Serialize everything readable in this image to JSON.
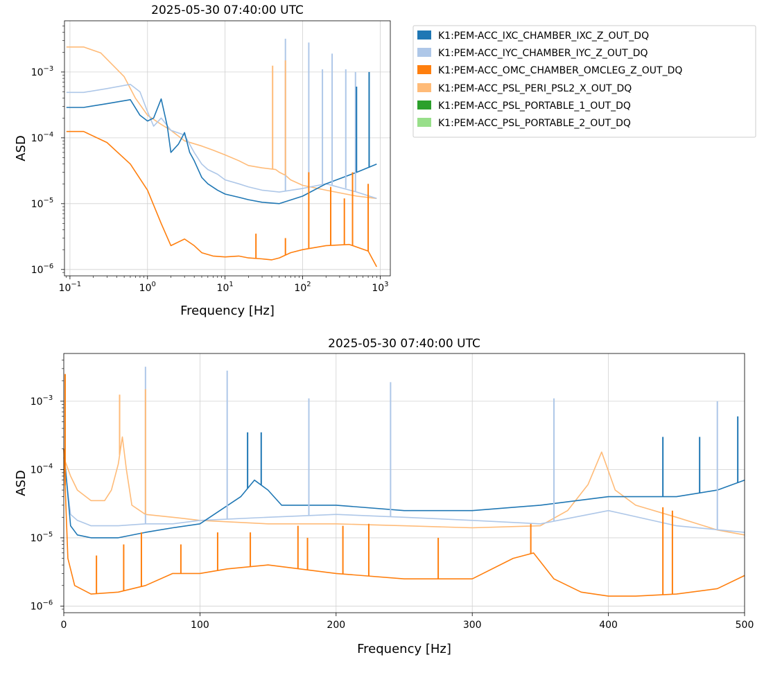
{
  "colors": {
    "IXC": "#1f77b4",
    "IYC": "#aec7e8",
    "OMC": "#ff7f0e",
    "PSL": "#ffbb78",
    "PORT1": "#2ca02c",
    "PORT2": "#98df8a"
  },
  "legend": {
    "placement": "right of top panel",
    "entries": [
      {
        "key": "IXC",
        "label": "K1:PEM-ACC_IXC_CHAMBER_IXC_Z_OUT_DQ"
      },
      {
        "key": "IYC",
        "label": "K1:PEM-ACC_IYC_CHAMBER_IYC_Z_OUT_DQ"
      },
      {
        "key": "OMC",
        "label": "K1:PEM-ACC_OMC_CHAMBER_OMCLEG_Z_OUT_DQ"
      },
      {
        "key": "PSL",
        "label": "K1:PEM-ACC_PSL_PERI_PSL2_X_OUT_DQ"
      },
      {
        "key": "PORT1",
        "label": "K1:PEM-ACC_PSL_PORTABLE_1_OUT_DQ"
      },
      {
        "key": "PORT2",
        "label": "K1:PEM-ACC_PSL_PORTABLE_2_OUT_DQ"
      }
    ]
  },
  "chart_data": [
    {
      "type": "line",
      "title": "2025-05-30 07:40:00 UTC",
      "xlabel": "Frequency [Hz]",
      "ylabel": "ASD",
      "xscale": "log",
      "yscale": "log",
      "xlim": [
        0.085,
        1350
      ],
      "ylim": [
        8e-07,
        0.006
      ],
      "grid": true,
      "xticks": [
        {
          "value": 0.1,
          "base": "10",
          "exp": "−1"
        },
        {
          "value": 1,
          "base": "10",
          "exp": "0"
        },
        {
          "value": 10,
          "base": "10",
          "exp": "1"
        },
        {
          "value": 100,
          "base": "10",
          "exp": "2"
        },
        {
          "value": 1000,
          "base": "10",
          "exp": "3"
        }
      ],
      "yticks": [
        {
          "value": 1e-06,
          "base": "10",
          "exp": "−6"
        },
        {
          "value": 1e-05,
          "base": "10",
          "exp": "−5"
        },
        {
          "value": 0.0001,
          "base": "10",
          "exp": "−4"
        },
        {
          "value": 0.001,
          "base": "10",
          "exp": "−3"
        }
      ],
      "series": [
        {
          "key": "IXC",
          "x": [
            0.09,
            0.15,
            0.3,
            0.6,
            0.8,
            1.0,
            1.2,
            1.5,
            1.8,
            2.0,
            2.5,
            3.0,
            3.5,
            4.0,
            5,
            6,
            8,
            10,
            15,
            20,
            30,
            50,
            100,
            200,
            500,
            900
          ],
          "y": [
            0.00029,
            0.00029,
            0.00033,
            0.00038,
            0.00022,
            0.00018,
            0.0002,
            0.00039,
            0.00015,
            6e-05,
            8e-05,
            0.00012,
            6e-05,
            4.5e-05,
            2.5e-05,
            2e-05,
            1.6e-05,
            1.4e-05,
            1.25e-05,
            1.15e-05,
            1.05e-05,
            1e-05,
            1.3e-05,
            2e-05,
            3e-05,
            4e-05
          ]
        },
        {
          "key": "IYC",
          "x": [
            0.09,
            0.15,
            0.3,
            0.6,
            0.8,
            1.0,
            1.2,
            1.5,
            2.0,
            3.0,
            4.0,
            5,
            6,
            8,
            10,
            15,
            20,
            30,
            50,
            100,
            200,
            500,
            900
          ],
          "y": [
            0.00049,
            0.00049,
            0.00056,
            0.00065,
            0.0005,
            0.00025,
            0.00015,
            0.0002,
            0.00013,
            0.00011,
            6e-05,
            4e-05,
            3.3e-05,
            2.8e-05,
            2.3e-05,
            2e-05,
            1.8e-05,
            1.6e-05,
            1.5e-05,
            1.7e-05,
            2e-05,
            1.5e-05,
            1.2e-05
          ]
        },
        {
          "key": "OMC",
          "x": [
            0.09,
            0.15,
            0.3,
            0.6,
            1.0,
            1.5,
            2.0,
            3.0,
            4.0,
            5,
            7,
            10,
            15,
            20,
            30,
            40,
            50,
            70,
            100,
            200,
            400,
            700,
            900
          ],
          "y": [
            0.000125,
            0.000125,
            8.5e-05,
            4e-05,
            1.6e-05,
            5e-06,
            2.3e-06,
            2.9e-06,
            2.3e-06,
            1.8e-06,
            1.6e-06,
            1.55e-06,
            1.6e-06,
            1.5e-06,
            1.45e-06,
            1.4e-06,
            1.5e-06,
            1.8e-06,
            2e-06,
            2.3e-06,
            2.4e-06,
            1.9e-06,
            1.1e-06
          ]
        },
        {
          "key": "PSL",
          "x": [
            0.09,
            0.15,
            0.25,
            0.5,
            0.7,
            1.0,
            1.5,
            2.0,
            3.0,
            5,
            7,
            10,
            15,
            20,
            30,
            45,
            50,
            60,
            70,
            100,
            200,
            500,
            900
          ],
          "y": [
            0.0024,
            0.0024,
            0.00195,
            0.00085,
            0.0004,
            0.00022,
            0.00016,
            0.00013,
            9e-05,
            7.5e-05,
            6.5e-05,
            5.5e-05,
            4.5e-05,
            3.8e-05,
            3.5e-05,
            3.3e-05,
            3e-05,
            2.7e-05,
            2.3e-05,
            1.9e-05,
            1.6e-05,
            1.3e-05,
            1.2e-05
          ]
        }
      ],
      "spikes": [
        {
          "key": "PSL",
          "x": 41,
          "y": 0.00125
        },
        {
          "key": "IYC",
          "x": 60,
          "y": 0.0032
        },
        {
          "key": "PSL",
          "x": 60,
          "y": 0.0015
        },
        {
          "key": "IYC",
          "x": 120,
          "y": 0.0028
        },
        {
          "key": "IYC",
          "x": 180,
          "y": 0.0011
        },
        {
          "key": "IYC",
          "x": 240,
          "y": 0.0019
        },
        {
          "key": "IYC",
          "x": 360,
          "y": 0.0011
        },
        {
          "key": "IYC",
          "x": 480,
          "y": 0.001
        },
        {
          "key": "IXC",
          "x": 495,
          "y": 0.0006
        },
        {
          "key": "IXC",
          "x": 720,
          "y": 0.001
        },
        {
          "key": "OMC",
          "x": 25,
          "y": 3.5e-06
        },
        {
          "key": "OMC",
          "x": 60,
          "y": 3e-06
        },
        {
          "key": "OMC",
          "x": 120,
          "y": 3e-05
        },
        {
          "key": "OMC",
          "x": 230,
          "y": 1.8e-05
        },
        {
          "key": "OMC",
          "x": 345,
          "y": 1.2e-05
        },
        {
          "key": "OMC",
          "x": 440,
          "y": 3e-05
        },
        {
          "key": "OMC",
          "x": 700,
          "y": 2e-05
        }
      ]
    },
    {
      "type": "line",
      "title": "2025-05-30 07:40:00 UTC",
      "xlabel": "Frequency [Hz]",
      "ylabel": "ASD",
      "xscale": "linear",
      "yscale": "log",
      "xlim": [
        0,
        500
      ],
      "ylim": [
        8e-07,
        0.005
      ],
      "grid": true,
      "xticks": [
        {
          "value": 0,
          "label": "0"
        },
        {
          "value": 100,
          "label": "100"
        },
        {
          "value": 200,
          "label": "200"
        },
        {
          "value": 300,
          "label": "300"
        },
        {
          "value": 400,
          "label": "400"
        },
        {
          "value": 500,
          "label": "500"
        }
      ],
      "yticks": [
        {
          "value": 1e-06,
          "base": "10",
          "exp": "−6"
        },
        {
          "value": 1e-05,
          "base": "10",
          "exp": "−5"
        },
        {
          "value": 0.0001,
          "base": "10",
          "exp": "−4"
        },
        {
          "value": 0.001,
          "base": "10",
          "exp": "−3"
        }
      ],
      "series": [
        {
          "key": "IXC",
          "x": [
            0,
            5,
            10,
            20,
            40,
            60,
            80,
            100,
            130,
            140,
            150,
            160,
            200,
            250,
            300,
            350,
            400,
            450,
            480,
            500
          ],
          "y": [
            0.0002,
            1.5e-05,
            1.1e-05,
            1e-05,
            1e-05,
            1.2e-05,
            1.4e-05,
            1.6e-05,
            4e-05,
            7e-05,
            5e-05,
            3e-05,
            3e-05,
            2.5e-05,
            2.5e-05,
            3e-05,
            4e-05,
            4e-05,
            5e-05,
            7e-05
          ]
        },
        {
          "key": "IYC",
          "x": [
            0,
            5,
            10,
            20,
            40,
            60,
            80,
            100,
            150,
            200,
            250,
            300,
            350,
            400,
            450,
            500
          ],
          "y": [
            0.00015,
            2.2e-05,
            1.8e-05,
            1.5e-05,
            1.5e-05,
            1.6e-05,
            1.6e-05,
            1.8e-05,
            2e-05,
            2.2e-05,
            2e-05,
            1.8e-05,
            1.6e-05,
            2.5e-05,
            1.5e-05,
            1.2e-05
          ]
        },
        {
          "key": "OMC",
          "x": [
            0,
            3,
            8,
            20,
            40,
            60,
            80,
            100,
            120,
            150,
            200,
            250,
            300,
            330,
            345,
            360,
            380,
            400,
            420,
            450,
            480,
            500
          ],
          "y": [
            0.0002,
            5e-06,
            2e-06,
            1.5e-06,
            1.6e-06,
            2e-06,
            3e-06,
            3e-06,
            3.5e-06,
            4e-06,
            3e-06,
            2.5e-06,
            2.5e-06,
            5e-06,
            6e-06,
            2.5e-06,
            1.6e-06,
            1.4e-06,
            1.4e-06,
            1.5e-06,
            1.8e-06,
            2.8e-06
          ]
        },
        {
          "key": "PSL",
          "x": [
            0,
            5,
            10,
            20,
            30,
            35,
            40,
            43,
            46,
            50,
            60,
            80,
            100,
            150,
            200,
            250,
            300,
            350,
            370,
            385,
            395,
            405,
            420,
            450,
            480,
            500
          ],
          "y": [
            0.00015,
            8e-05,
            5e-05,
            3.5e-05,
            3.5e-05,
            5e-05,
            0.00012,
            0.0003,
            0.0001,
            3e-05,
            2.2e-05,
            2e-05,
            1.8e-05,
            1.6e-05,
            1.6e-05,
            1.5e-05,
            1.4e-05,
            1.5e-05,
            2.5e-05,
            6e-05,
            0.00018,
            5e-05,
            3e-05,
            2e-05,
            1.3e-05,
            1.1e-05
          ]
        }
      ],
      "spikes": [
        {
          "key": "OMC",
          "x": 1,
          "y": 0.0025
        },
        {
          "key": "PSL",
          "x": 41,
          "y": 0.00125
        },
        {
          "key": "IYC",
          "x": 60,
          "y": 0.0032
        },
        {
          "key": "PSL",
          "x": 60,
          "y": 0.0015
        },
        {
          "key": "IYC",
          "x": 120,
          "y": 0.0028
        },
        {
          "key": "IXC",
          "x": 135,
          "y": 0.00035
        },
        {
          "key": "IXC",
          "x": 145,
          "y": 0.00035
        },
        {
          "key": "IYC",
          "x": 180,
          "y": 0.0011
        },
        {
          "key": "IYC",
          "x": 240,
          "y": 0.0019
        },
        {
          "key": "IYC",
          "x": 360,
          "y": 0.0011
        },
        {
          "key": "IXC",
          "x": 440,
          "y": 0.0003
        },
        {
          "key": "IXC",
          "x": 467,
          "y": 0.0003
        },
        {
          "key": "IYC",
          "x": 480,
          "y": 0.001
        },
        {
          "key": "IXC",
          "x": 495,
          "y": 0.0006
        },
        {
          "key": "OMC",
          "x": 24,
          "y": 5.5e-06
        },
        {
          "key": "OMC",
          "x": 44,
          "y": 8e-06
        },
        {
          "key": "OMC",
          "x": 57,
          "y": 1.2e-05
        },
        {
          "key": "OMC",
          "x": 86,
          "y": 8e-06
        },
        {
          "key": "OMC",
          "x": 113,
          "y": 1.2e-05
        },
        {
          "key": "OMC",
          "x": 137,
          "y": 1.2e-05
        },
        {
          "key": "OMC",
          "x": 172,
          "y": 1.5e-05
        },
        {
          "key": "OMC",
          "x": 179,
          "y": 1e-05
        },
        {
          "key": "OMC",
          "x": 205,
          "y": 1.5e-05
        },
        {
          "key": "OMC",
          "x": 224,
          "y": 1.6e-05
        },
        {
          "key": "OMC",
          "x": 275,
          "y": 1e-05
        },
        {
          "key": "OMC",
          "x": 343,
          "y": 1.6e-05
        },
        {
          "key": "OMC",
          "x": 440,
          "y": 2.8e-05
        },
        {
          "key": "OMC",
          "x": 447,
          "y": 2.5e-05
        }
      ]
    }
  ]
}
